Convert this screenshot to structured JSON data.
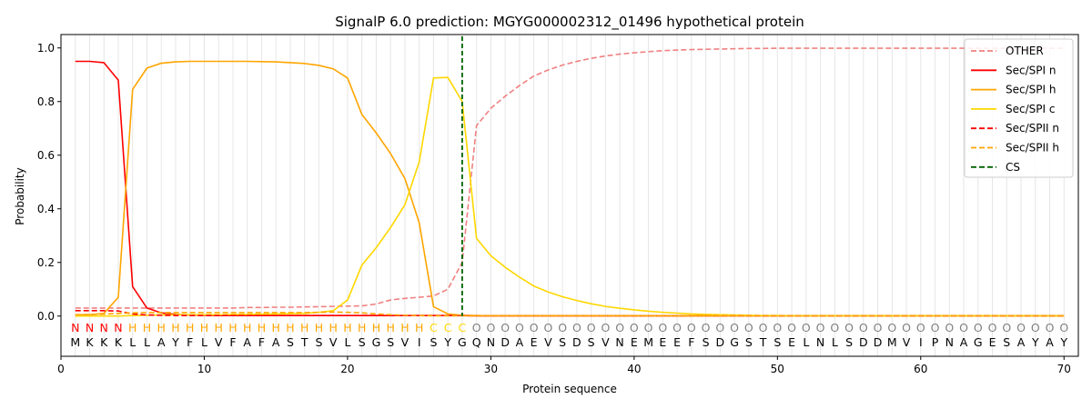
{
  "chart_data": {
    "type": "line",
    "title": "SignalP 6.0 prediction: MGYG000002312_01496 hypothetical protein",
    "xlabel": "Protein sequence",
    "ylabel": "Probability",
    "xlim": [
      0,
      71
    ],
    "ylim": [
      -0.15,
      1.05
    ],
    "x_ticks": [
      0,
      10,
      20,
      30,
      40,
      50,
      60,
      70
    ],
    "y_ticks": [
      0.0,
      0.2,
      0.4,
      0.6,
      0.8,
      1.0
    ],
    "grid": "vertical lines at each residue",
    "legend_position": "top-right",
    "sequence": [
      "M",
      "K",
      "K",
      "K",
      "L",
      "L",
      "A",
      "Y",
      "F",
      "L",
      "V",
      "F",
      "A",
      "F",
      "A",
      "S",
      "T",
      "S",
      "V",
      "L",
      "S",
      "G",
      "S",
      "V",
      "I",
      "S",
      "Y",
      "G",
      "Q",
      "N",
      "D",
      "A",
      "E",
      "V",
      "S",
      "D",
      "S",
      "V",
      "N",
      "E",
      "M",
      "E",
      "E",
      "F",
      "S",
      "D",
      "G",
      "S",
      "T",
      "S",
      "E",
      "L",
      "N",
      "L",
      "S",
      "D",
      "D",
      "M",
      "V",
      "I",
      "P",
      "N",
      "A",
      "G",
      "E",
      "S",
      "A",
      "Y",
      "A",
      "Y"
    ],
    "region_labels": [
      "N",
      "N",
      "N",
      "N",
      "H",
      "H",
      "H",
      "H",
      "H",
      "H",
      "H",
      "H",
      "H",
      "H",
      "H",
      "H",
      "H",
      "H",
      "H",
      "H",
      "H",
      "H",
      "H",
      "H",
      "H",
      "C",
      "C",
      "C",
      "O",
      "O",
      "O",
      "O",
      "O",
      "O",
      "O",
      "O",
      "O",
      "O",
      "O",
      "O",
      "O",
      "O",
      "O",
      "O",
      "O",
      "O",
      "O",
      "O",
      "O",
      "O",
      "O",
      "O",
      "O",
      "O",
      "O",
      "O",
      "O",
      "O",
      "O",
      "O",
      "O",
      "O",
      "O",
      "O",
      "O",
      "O",
      "O",
      "O",
      "O",
      "O"
    ],
    "region_colors": {
      "N": "#ff0000",
      "H": "#ffa500",
      "C": "#ffd700",
      "O": "#808080"
    },
    "cleavage_site": 28,
    "series": [
      {
        "name": "OTHER",
        "color": "#f08080",
        "dash": true,
        "values": [
          0.03,
          0.03,
          0.03,
          0.03,
          0.03,
          0.03,
          0.03,
          0.03,
          0.03,
          0.03,
          0.03,
          0.03,
          0.032,
          0.032,
          0.033,
          0.033,
          0.034,
          0.035,
          0.036,
          0.037,
          0.038,
          0.045,
          0.06,
          0.066,
          0.07,
          0.075,
          0.1,
          0.2,
          0.71,
          0.775,
          0.82,
          0.86,
          0.895,
          0.918,
          0.936,
          0.95,
          0.961,
          0.97,
          0.977,
          0.982,
          0.986,
          0.99,
          0.992,
          0.994,
          0.995,
          0.996,
          0.997,
          0.998,
          0.998,
          0.999,
          0.999,
          0.999,
          0.999,
          0.999,
          0.999,
          0.999,
          0.999,
          0.999,
          0.999,
          0.999,
          0.999,
          0.999,
          0.999,
          0.999,
          0.999,
          0.999,
          0.999,
          0.999,
          0.999,
          0.999
        ]
      },
      {
        "name": "Sec/SPI n",
        "color": "#ff0000",
        "dash": false,
        "values": [
          0.95,
          0.95,
          0.945,
          0.88,
          0.11,
          0.03,
          0.012,
          0.006,
          0.004,
          0.003,
          0.002,
          0.002,
          0.002,
          0.002,
          0.002,
          0.002,
          0.002,
          0.002,
          0.002,
          0.002,
          0.002,
          0.002,
          0.002,
          0.002,
          0.002,
          0.002,
          0.002,
          0.002,
          0.001,
          0.001,
          0.001,
          0.001,
          0.001,
          0.001,
          0.001,
          0.001,
          0.001,
          0.001,
          0.001,
          0.001,
          0.001,
          0.001,
          0.001,
          0.001,
          0.001,
          0.001,
          0.001,
          0.001,
          0.001,
          0.001,
          0.001,
          0.001,
          0.001,
          0.001,
          0.001,
          0.001,
          0.001,
          0.001,
          0.001,
          0.001,
          0.001,
          0.001,
          0.001,
          0.001,
          0.001,
          0.001,
          0.001,
          0.001,
          0.001,
          0.001
        ]
      },
      {
        "name": "Sec/SPI h",
        "color": "#ffa500",
        "dash": false,
        "values": [
          0.005,
          0.005,
          0.01,
          0.07,
          0.845,
          0.925,
          0.943,
          0.948,
          0.95,
          0.95,
          0.95,
          0.95,
          0.95,
          0.949,
          0.948,
          0.945,
          0.942,
          0.935,
          0.922,
          0.888,
          0.752,
          0.683,
          0.606,
          0.513,
          0.348,
          0.035,
          0.008,
          0.003,
          0.002,
          0.001,
          0.001,
          0.001,
          0.001,
          0.001,
          0.001,
          0.001,
          0.001,
          0.001,
          0.001,
          0.001,
          0.001,
          0.001,
          0.001,
          0.001,
          0.001,
          0.001,
          0.001,
          0.001,
          0.001,
          0.001,
          0.001,
          0.001,
          0.001,
          0.001,
          0.001,
          0.001,
          0.001,
          0.001,
          0.001,
          0.001,
          0.001,
          0.001,
          0.001,
          0.001,
          0.001,
          0.001,
          0.001,
          0.001,
          0.001,
          0.001
        ]
      },
      {
        "name": "Sec/SPI c",
        "color": "#ffd700",
        "dash": false,
        "values": [
          0.0,
          0.0,
          0.0,
          0.0,
          0.002,
          0.003,
          0.004,
          0.005,
          0.005,
          0.005,
          0.005,
          0.006,
          0.006,
          0.007,
          0.008,
          0.009,
          0.01,
          0.014,
          0.02,
          0.06,
          0.19,
          0.255,
          0.33,
          0.415,
          0.575,
          0.888,
          0.89,
          0.8,
          0.29,
          0.225,
          0.182,
          0.145,
          0.112,
          0.09,
          0.072,
          0.058,
          0.046,
          0.036,
          0.029,
          0.023,
          0.018,
          0.014,
          0.011,
          0.008,
          0.006,
          0.005,
          0.004,
          0.003,
          0.002,
          0.002,
          0.001,
          0.001,
          0.001,
          0.001,
          0.001,
          0.001,
          0.001,
          0.001,
          0.001,
          0.001,
          0.001,
          0.001,
          0.001,
          0.001,
          0.001,
          0.001,
          0.001,
          0.001,
          0.001,
          0.001
        ]
      },
      {
        "name": "Sec/SPII n",
        "color": "#ff0000",
        "dash": true,
        "values": [
          0.02,
          0.02,
          0.02,
          0.019,
          0.008,
          0.004,
          0.003,
          0.002,
          0.002,
          0.002,
          0.002,
          0.002,
          0.002,
          0.002,
          0.002,
          0.002,
          0.002,
          0.002,
          0.002,
          0.002,
          0.002,
          0.002,
          0.002,
          0.002,
          0.002,
          0.002,
          0.002,
          0.002,
          0.001,
          0.001,
          0.001,
          0.001,
          0.001,
          0.001,
          0.001,
          0.001,
          0.001,
          0.001,
          0.001,
          0.001,
          0.001,
          0.001,
          0.001,
          0.001,
          0.001,
          0.001,
          0.001,
          0.001,
          0.001,
          0.001,
          0.001,
          0.001,
          0.001,
          0.001,
          0.001,
          0.001,
          0.001,
          0.001,
          0.001,
          0.001,
          0.001,
          0.001,
          0.001,
          0.001,
          0.001,
          0.001,
          0.001,
          0.001,
          0.001,
          0.001
        ]
      },
      {
        "name": "Sec/SPII h",
        "color": "#ffa500",
        "dash": true,
        "values": [
          0.005,
          0.006,
          0.007,
          0.01,
          0.012,
          0.013,
          0.013,
          0.013,
          0.013,
          0.013,
          0.013,
          0.013,
          0.013,
          0.013,
          0.013,
          0.013,
          0.013,
          0.014,
          0.015,
          0.014,
          0.012,
          0.008,
          0.005,
          0.003,
          0.002,
          0.001,
          0.001,
          0.001,
          0.001,
          0.001,
          0.001,
          0.001,
          0.001,
          0.001,
          0.001,
          0.001,
          0.001,
          0.001,
          0.001,
          0.001,
          0.001,
          0.001,
          0.001,
          0.001,
          0.001,
          0.001,
          0.001,
          0.001,
          0.001,
          0.001,
          0.001,
          0.001,
          0.001,
          0.001,
          0.001,
          0.001,
          0.001,
          0.001,
          0.001,
          0.001,
          0.001,
          0.001,
          0.001,
          0.001,
          0.001,
          0.001,
          0.001,
          0.001,
          0.001,
          0.001
        ]
      }
    ],
    "legend": [
      {
        "name": "OTHER",
        "color": "#f08080",
        "dash": true
      },
      {
        "name": "Sec/SPI n",
        "color": "#ff0000",
        "dash": false
      },
      {
        "name": "Sec/SPI h",
        "color": "#ffa500",
        "dash": false
      },
      {
        "name": "Sec/SPI c",
        "color": "#ffd700",
        "dash": false
      },
      {
        "name": "Sec/SPII n",
        "color": "#ff0000",
        "dash": true
      },
      {
        "name": "Sec/SPII h",
        "color": "#ffa500",
        "dash": true
      },
      {
        "name": "CS",
        "color": "#006400",
        "dash": true
      }
    ]
  }
}
